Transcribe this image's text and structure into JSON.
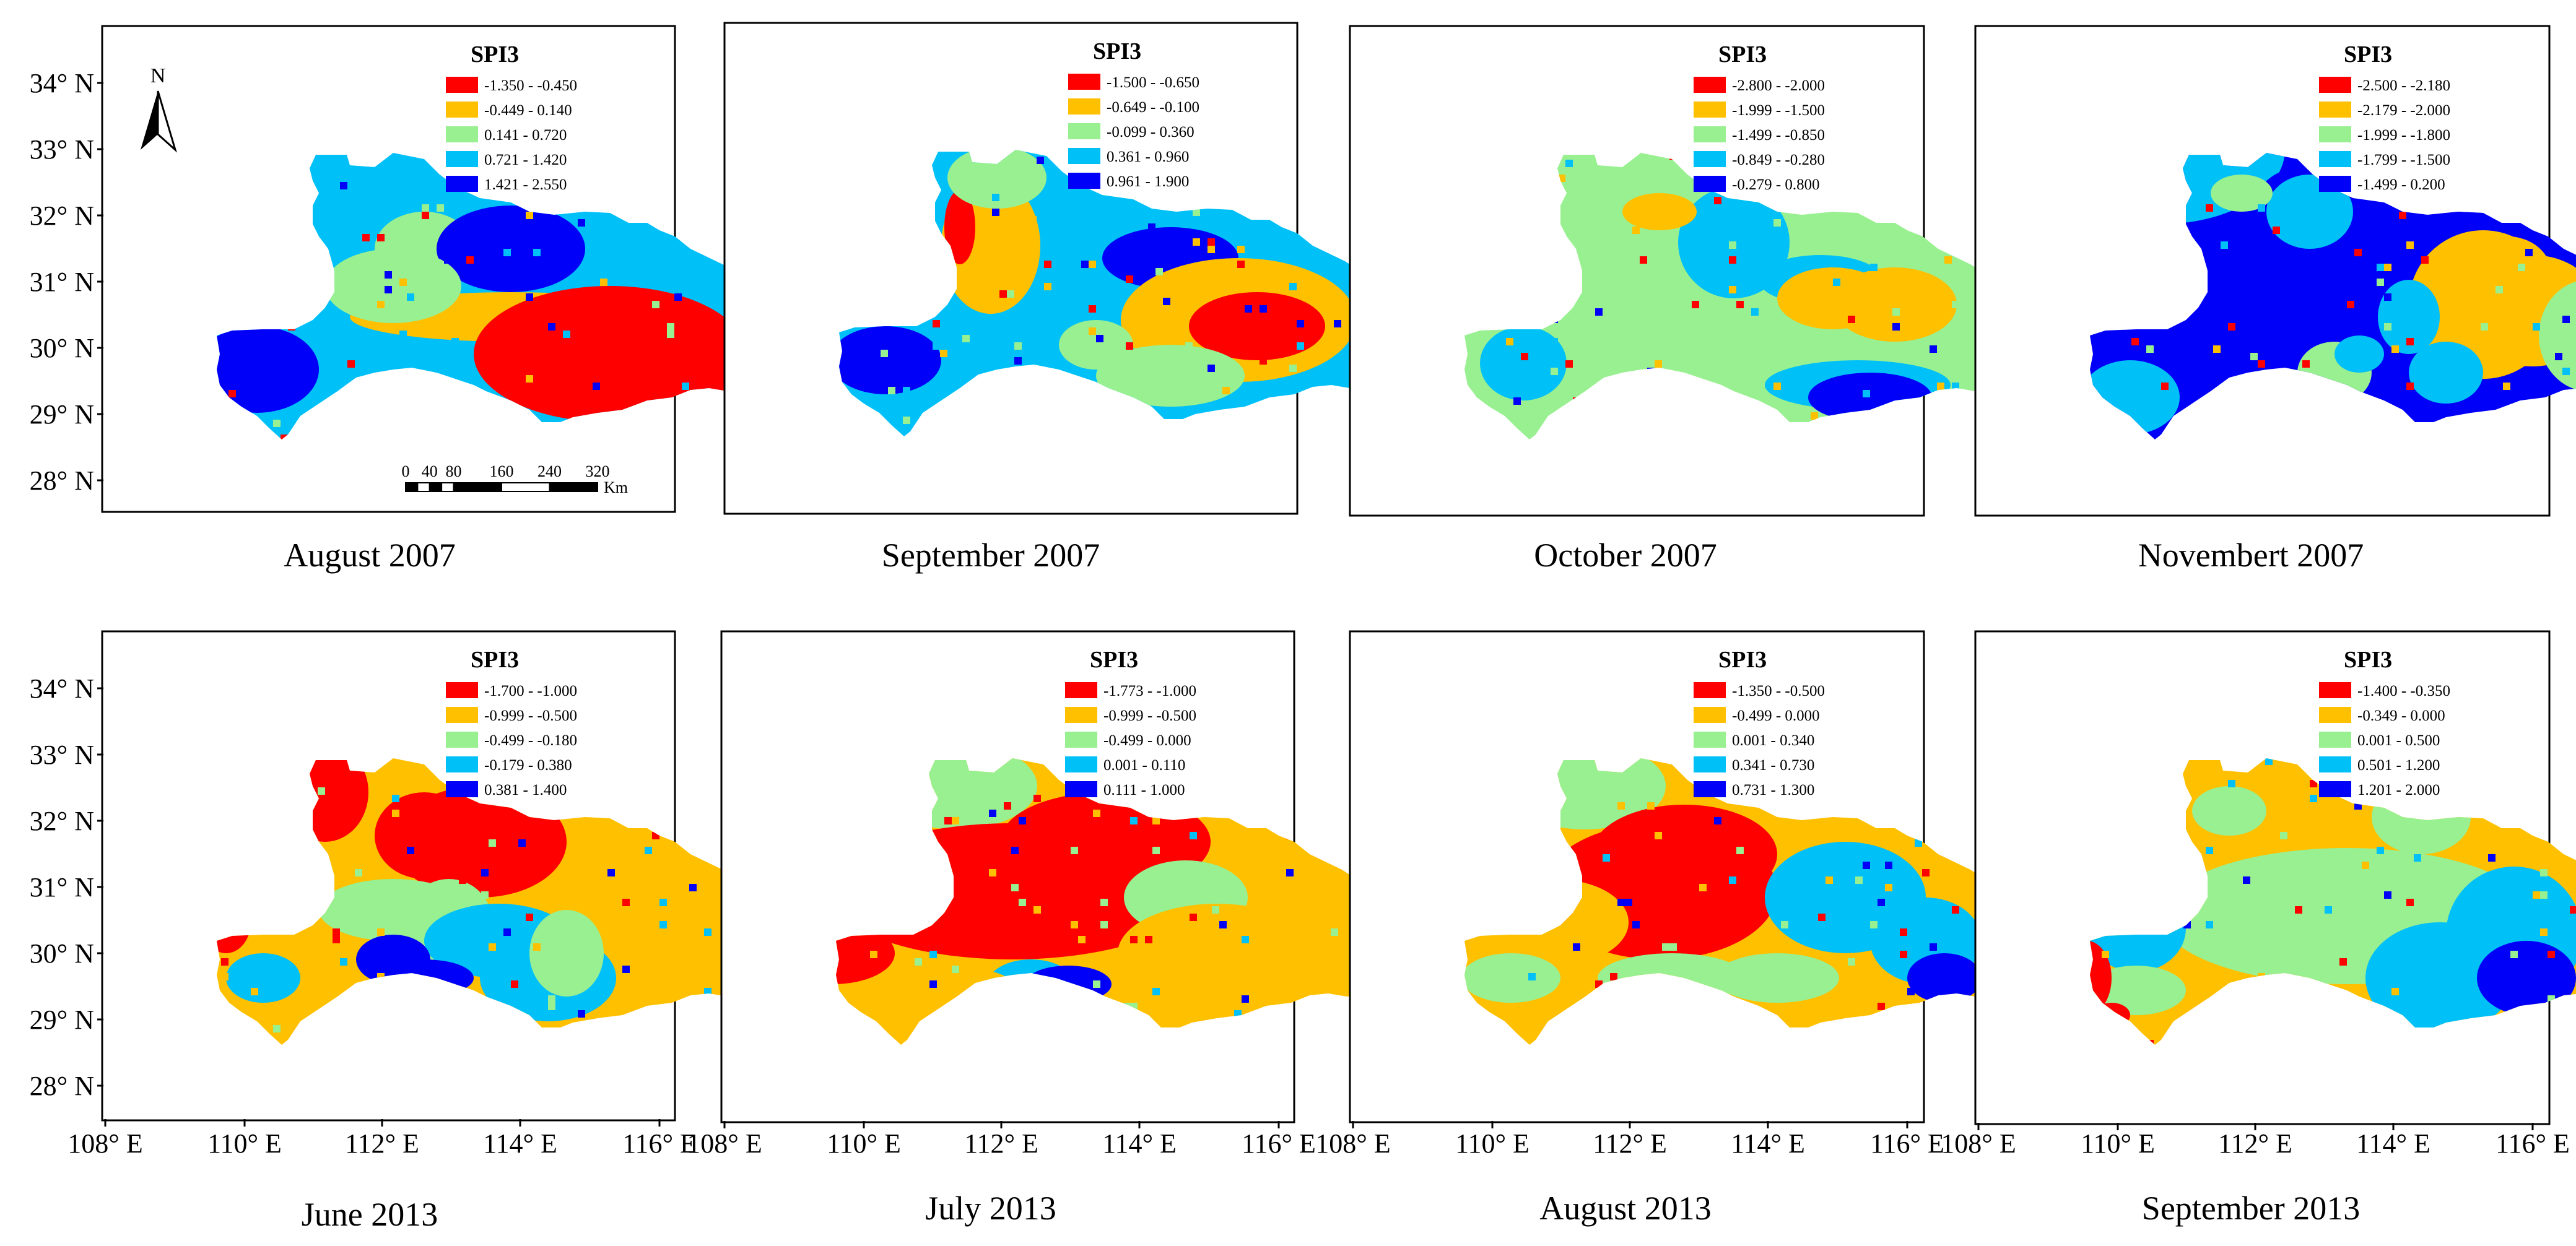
{
  "figure": {
    "legend_title": "SPI3",
    "lat_labels": [
      "34° N",
      "33° N",
      "32° N",
      "31° N",
      "30° N",
      "29° N",
      "28° N"
    ],
    "lon_labels": [
      "108° E",
      "110° E",
      "112° E",
      "114° E",
      "116° E"
    ],
    "north_label": "N",
    "scale_bar": {
      "ticks": [
        "0",
        "40",
        "80",
        "160",
        "240",
        "320"
      ],
      "unit": "Km"
    },
    "class_colors": [
      "#ff0000",
      "#ffc000",
      "#99f090",
      "#00c0f8",
      "#0000f8"
    ]
  },
  "panels": [
    {
      "caption": "August 2007",
      "legend": [
        "-1.350 - -0.450",
        "-0.449 - 0.140",
        "0.141 - 0.720",
        "0.721 - 1.420",
        "1.421 - 2.550"
      ]
    },
    {
      "caption": "September 2007",
      "legend": [
        "-1.500 - -0.650",
        "-0.649 - -0.100",
        "-0.099 - 0.360",
        "0.361 - 0.960",
        "0.961 - 1.900"
      ]
    },
    {
      "caption": "October 2007",
      "legend": [
        "-2.800 - -2.000",
        "-1.999 - -1.500",
        "-1.499 - -0.850",
        "-0.849 - -0.280",
        "-0.279 - 0.800"
      ]
    },
    {
      "caption": "Novembert 2007",
      "legend": [
        "-2.500 - -2.180",
        "-2.179 - -2.000",
        "-1.999 - -1.800",
        "-1.799 - -1.500",
        "-1.499 - 0.200"
      ]
    },
    {
      "caption": "June 2013",
      "legend": [
        "-1.700 - -1.000",
        "-0.999 - -0.500",
        "-0.499 - -0.180",
        "-0.179 - 0.380",
        "0.381 - 1.400"
      ]
    },
    {
      "caption": "July 2013",
      "legend": [
        "-1.773 - -1.000",
        "-0.999 - -0.500",
        "-0.499 - 0.000",
        "0.001 - 0.110",
        "0.111 - 1.000"
      ]
    },
    {
      "caption": "August 2013",
      "legend": [
        "-1.350 - -0.500",
        "-0.499 - 0.000",
        "0.001 - 0.340",
        "0.341 - 0.730",
        "0.731 - 1.300"
      ]
    },
    {
      "caption": "September 2013",
      "legend": [
        "-1.400 - -0.350",
        "-0.349 - 0.000",
        "0.001 - 0.500",
        "0.501 - 1.200",
        "1.201 - 2.000"
      ]
    }
  ]
}
